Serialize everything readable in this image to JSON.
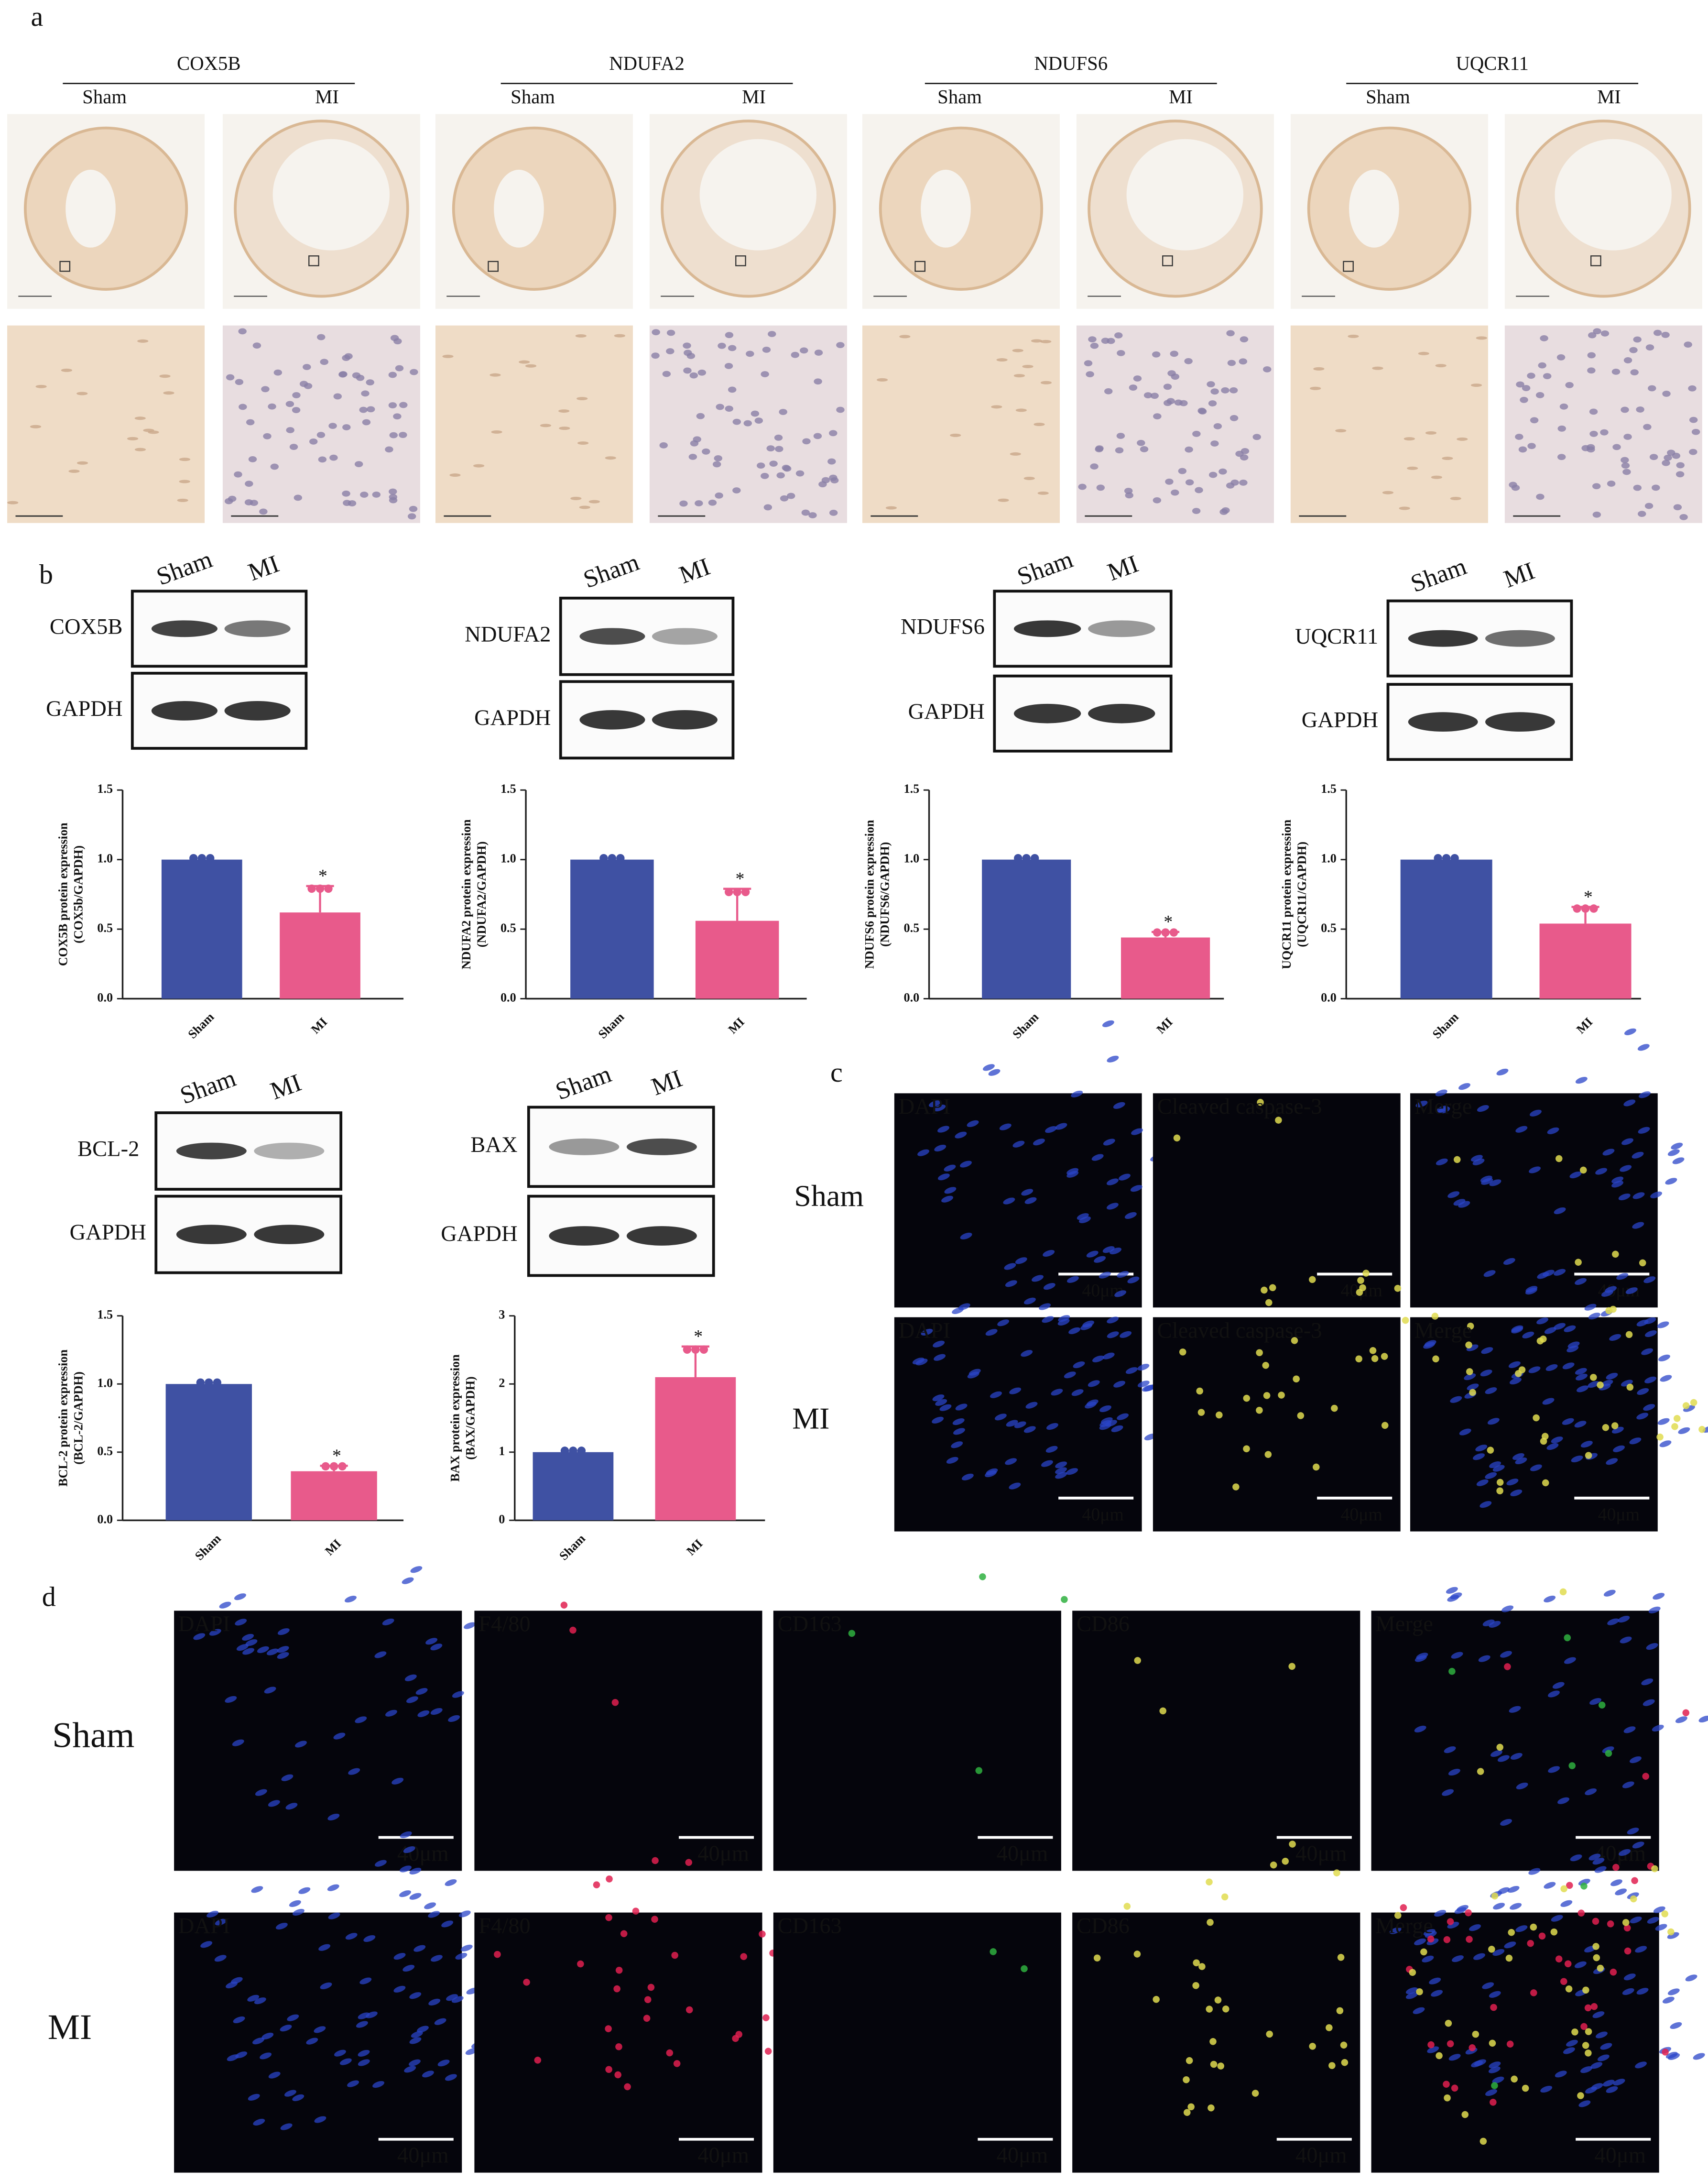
{
  "panel_labels": [
    "a",
    "b",
    "c",
    "d"
  ],
  "ihc": {
    "proteins": [
      "COX5B",
      "NDUFA2",
      "NDUFS6",
      "UQCR11"
    ],
    "groups": [
      "Sham",
      "MI"
    ]
  },
  "blots": [
    {
      "target": "COX5B",
      "control": "GAPDH",
      "lanes": [
        "Sham",
        "MI"
      ]
    },
    {
      "target": "NDUFA2",
      "control": "GAPDH",
      "lanes": [
        "Sham",
        "MI"
      ]
    },
    {
      "target": "NDUFS6",
      "control": "GAPDH",
      "lanes": [
        "Sham",
        "MI"
      ]
    },
    {
      "target": "UQCR11",
      "control": "GAPDH",
      "lanes": [
        "Sham",
        "MI"
      ]
    },
    {
      "target": "BCL-2",
      "control": "GAPDH",
      "lanes": [
        "Sham",
        "MI"
      ]
    },
    {
      "target": "BAX",
      "control": "GAPDH",
      "lanes": [
        "Sham",
        "MI"
      ]
    }
  ],
  "chart_data": [
    {
      "type": "bar",
      "ylabel": [
        "COX5B protein expression",
        "(COX5b/GAPDH)"
      ],
      "categories": [
        "Sham",
        "MI"
      ],
      "values": [
        1.0,
        0.62
      ],
      "errors": [
        0,
        0.19
      ],
      "colors": [
        "#3f51a3",
        "#e85a8b"
      ],
      "annotation": "*",
      "ylim": [
        0,
        1.5
      ],
      "yticks": [
        {
          "value": 0,
          "label": "0.0"
        },
        0.5,
        {
          "value": 1,
          "label": "1.0"
        },
        1.5
      ]
    },
    {
      "type": "bar",
      "ylabel": [
        "NDUFA2 protein expression",
        "(NDUFA2/GAPDH)"
      ],
      "categories": [
        "Sham",
        "MI"
      ],
      "values": [
        1.0,
        0.56
      ],
      "errors": [
        0,
        0.23
      ],
      "colors": [
        "#3f51a3",
        "#e85a8b"
      ],
      "annotation": "*",
      "ylim": [
        0,
        1.5
      ],
      "yticks": [
        {
          "value": 0,
          "label": "0.0"
        },
        0.5,
        {
          "value": 1,
          "label": "1.0"
        },
        1.5
      ]
    },
    {
      "type": "bar",
      "ylabel": [
        "NDUFS6 protein expression",
        "(NDUFS6/GAPDH)"
      ],
      "categories": [
        "Sham",
        "MI"
      ],
      "values": [
        1.0,
        0.44
      ],
      "errors": [
        0,
        0.04
      ],
      "colors": [
        "#3f51a3",
        "#e85a8b"
      ],
      "annotation": "*",
      "ylim": [
        0,
        1.5
      ],
      "yticks": [
        {
          "value": 0,
          "label": "0.0"
        },
        0.5,
        {
          "value": 1,
          "label": "1.0"
        },
        1.5
      ]
    },
    {
      "type": "bar",
      "ylabel": [
        "UQCR11 protein expression",
        "(UQCR11/GAPDH)"
      ],
      "categories": [
        "Sham",
        "MI"
      ],
      "values": [
        1.0,
        0.54
      ],
      "errors": [
        0,
        0.12
      ],
      "colors": [
        "#3f51a3",
        "#e85a8b"
      ],
      "annotation": "*",
      "ylim": [
        0,
        1.5
      ],
      "yticks": [
        {
          "value": 0,
          "label": "0.0"
        },
        0.5,
        {
          "value": 1,
          "label": "1.0"
        },
        1.5
      ]
    },
    {
      "type": "bar",
      "ylabel": [
        "BCL-2 protein expression",
        "(BCL-2/GAPDH)"
      ],
      "categories": [
        "Sham",
        "MI"
      ],
      "values": [
        1.0,
        0.36
      ],
      "errors": [
        0,
        0.04
      ],
      "colors": [
        "#3f51a3",
        "#e85a8b"
      ],
      "annotation": "*",
      "ylim": [
        0,
        1.5
      ],
      "yticks": [
        {
          "value": 0,
          "label": "0.0"
        },
        0.5,
        {
          "value": 1,
          "label": "1.0"
        },
        1.5
      ]
    },
    {
      "type": "bar",
      "ylabel": [
        "BAX protein expression",
        "(BAX/GAPDH)"
      ],
      "categories": [
        "Sham",
        "MI"
      ],
      "values": [
        1.0,
        2.1
      ],
      "errors": [
        0,
        0.45
      ],
      "colors": [
        "#3f51a3",
        "#e85a8b"
      ],
      "annotation": "*",
      "ylim": [
        0,
        3
      ],
      "yticks": [
        0,
        1,
        2,
        3
      ]
    }
  ],
  "if_c": {
    "rows": [
      "Sham",
      "MI"
    ],
    "channels": [
      "DAPI",
      "Cleaved caspase-3",
      "Merge"
    ],
    "channel_colors": [
      "#3f6fbf",
      "#d8d060",
      "#a58ac0"
    ],
    "scale": "40μm"
  },
  "if_d": {
    "rows": [
      "Sham",
      "MI"
    ],
    "channels": [
      "DAPI",
      "F4/80",
      "CD163",
      "CD86",
      "Merge"
    ],
    "channel_colors": [
      "#3f6fbf",
      "#e0305a",
      "#2fa84a",
      "#d8d060",
      "#a58ac0"
    ],
    "scale": "40μm"
  }
}
